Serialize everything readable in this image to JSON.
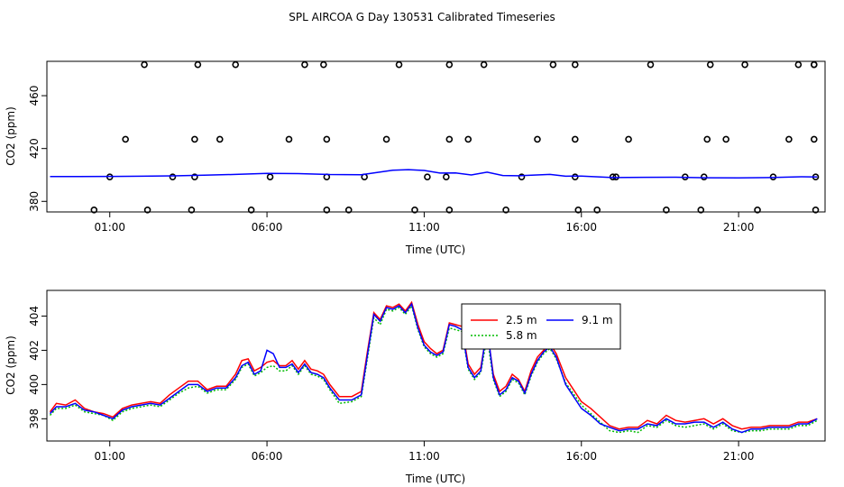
{
  "title": "SPL AIRCOA G  Day 130531  Calibrated Timeseries",
  "colors": {
    "s1": "#ff0000",
    "s2": "#00bb00",
    "s3": "#0000ff",
    "axis": "#000000",
    "bg": "#ffffff"
  },
  "chart_data": [
    {
      "type": "scatter",
      "name": "top",
      "title": "SPL AIRCOA G  Day 130531  Calibrated Timeseries",
      "xlabel": "Time (UTC)",
      "ylabel": "CO2 (ppm)",
      "xlim": [
        -1.0,
        23.75
      ],
      "ylim": [
        372,
        486
      ],
      "xticks": [
        1,
        6,
        11,
        16,
        21
      ],
      "xtick_labels": [
        "01:00",
        "06:00",
        "11:00",
        "16:00",
        "21:00"
      ],
      "yticks": [
        380,
        420,
        460
      ],
      "ytick_labels": [
        "380",
        "420",
        "460"
      ],
      "points": [
        [
          0.5,
          373.5
        ],
        [
          2.2,
          373.5
        ],
        [
          3.6,
          373.5
        ],
        [
          5.5,
          373.5
        ],
        [
          7.9,
          373.5
        ],
        [
          8.6,
          373.5
        ],
        [
          10.7,
          373.5
        ],
        [
          11.8,
          373.5
        ],
        [
          13.6,
          373.5
        ],
        [
          15.9,
          373.5
        ],
        [
          16.5,
          373.5
        ],
        [
          18.7,
          373.5
        ],
        [
          19.8,
          373.5
        ],
        [
          21.6,
          373.5
        ],
        [
          23.45,
          373.5
        ],
        [
          1.0,
          398.5
        ],
        [
          3.0,
          398.5
        ],
        [
          3.7,
          398.5
        ],
        [
          6.1,
          398.5
        ],
        [
          7.9,
          398.5
        ],
        [
          9.1,
          398.5
        ],
        [
          11.1,
          398.5
        ],
        [
          11.7,
          398.5
        ],
        [
          14.1,
          398.5
        ],
        [
          15.8,
          398.5
        ],
        [
          17.0,
          398.5
        ],
        [
          17.1,
          398.5
        ],
        [
          19.3,
          398.5
        ],
        [
          19.9,
          398.5
        ],
        [
          22.1,
          398.5
        ],
        [
          23.45,
          398.5
        ],
        [
          1.5,
          427
        ],
        [
          3.7,
          427
        ],
        [
          4.5,
          427
        ],
        [
          6.7,
          427
        ],
        [
          7.9,
          427
        ],
        [
          9.8,
          427
        ],
        [
          11.8,
          427
        ],
        [
          12.4,
          427
        ],
        [
          14.6,
          427
        ],
        [
          15.8,
          427
        ],
        [
          17.5,
          427
        ],
        [
          20.0,
          427
        ],
        [
          20.6,
          427
        ],
        [
          22.6,
          427
        ],
        [
          23.4,
          427
        ],
        [
          2.1,
          483.5
        ],
        [
          3.8,
          483.5
        ],
        [
          5.0,
          483.5
        ],
        [
          7.2,
          483.5
        ],
        [
          7.8,
          483.5
        ],
        [
          10.2,
          483.5
        ],
        [
          11.8,
          483.5
        ],
        [
          12.9,
          483.5
        ],
        [
          15.1,
          483.5
        ],
        [
          15.8,
          483.5
        ],
        [
          18.2,
          483.5
        ],
        [
          20.1,
          483.5
        ],
        [
          21.2,
          483.5
        ],
        [
          23.4,
          483.5
        ],
        [
          23.4,
          483.5
        ],
        [
          22.9,
          483.5
        ]
      ],
      "line": {
        "name": "fit",
        "x": [
          -0.9,
          0,
          1,
          2,
          3,
          4,
          5,
          6,
          7,
          8,
          9,
          9.5,
          10,
          10.5,
          11,
          11.5,
          12,
          12.5,
          13,
          13.5,
          14,
          15,
          15.5,
          16,
          17,
          18,
          19,
          20,
          21,
          22,
          23,
          23.5
        ],
        "y": [
          398.8,
          398.8,
          398.9,
          399.0,
          399.3,
          399.8,
          400.4,
          401.2,
          401.0,
          400.3,
          400.2,
          401.8,
          403.6,
          404.0,
          403.4,
          401.4,
          401.5,
          400.0,
          402.1,
          399.6,
          399.4,
          400.4,
          399.0,
          399.2,
          398.0,
          398.2,
          398.3,
          397.9,
          397.8,
          398.0,
          398.6,
          398.4
        ]
      }
    },
    {
      "type": "line",
      "name": "bottom",
      "xlabel": "Time (UTC)",
      "ylabel": "CO2 (ppm)",
      "xlim": [
        -1.0,
        23.75
      ],
      "ylim": [
        396.7,
        405.5
      ],
      "xticks": [
        1,
        6,
        11,
        16,
        21
      ],
      "xtick_labels": [
        "01:00",
        "06:00",
        "11:00",
        "16:00",
        "21:00"
      ],
      "yticks": [
        398,
        400,
        402,
        404
      ],
      "ytick_labels": [
        "398",
        "400",
        "402",
        "404"
      ],
      "legend": {
        "placement": "top-right",
        "entries": [
          "2.5 m",
          "5.8 m",
          "9.1 m"
        ]
      },
      "series": [
        {
          "name": "2.5 m",
          "x": [
            -0.9,
            -0.7,
            -0.4,
            -0.1,
            0.2,
            0.5,
            0.8,
            1.1,
            1.4,
            1.7,
            2.0,
            2.3,
            2.6,
            2.9,
            3.2,
            3.5,
            3.8,
            4.1,
            4.4,
            4.7,
            5.0,
            5.2,
            5.4,
            5.6,
            5.8,
            6.0,
            6.2,
            6.4,
            6.6,
            6.8,
            7.0,
            7.2,
            7.4,
            7.6,
            7.8,
            8.0,
            8.3,
            8.7,
            9.0,
            9.2,
            9.4,
            9.6,
            9.8,
            10.0,
            10.2,
            10.4,
            10.6,
            10.8,
            11.0,
            11.2,
            11.4,
            11.6,
            11.8,
            12.0,
            12.2,
            12.4,
            12.6,
            12.8,
            13.0,
            13.2,
            13.4,
            13.6,
            13.8,
            14.0,
            14.2,
            14.4,
            14.6,
            14.8,
            15.0,
            15.2,
            15.5,
            16.0,
            16.3,
            16.6,
            16.9,
            17.2,
            17.5,
            17.8,
            18.1,
            18.4,
            18.7,
            19.0,
            19.3,
            19.6,
            19.9,
            20.2,
            20.5,
            20.8,
            21.1,
            21.4,
            21.7,
            22.0,
            22.3,
            22.6,
            22.9,
            23.2,
            23.5
          ],
          "y": [
            398.4,
            398.9,
            398.8,
            399.1,
            398.6,
            398.4,
            398.3,
            398.1,
            398.6,
            398.8,
            398.9,
            399.0,
            398.9,
            399.4,
            399.8,
            400.2,
            400.2,
            399.7,
            399.9,
            399.9,
            400.6,
            401.4,
            401.5,
            400.8,
            401.0,
            401.3,
            401.4,
            401.1,
            401.1,
            401.4,
            400.9,
            401.4,
            400.9,
            400.8,
            400.6,
            400.0,
            399.3,
            399.3,
            399.6,
            402.0,
            404.2,
            403.8,
            404.6,
            404.5,
            404.7,
            404.3,
            404.8,
            403.5,
            402.5,
            402.1,
            401.8,
            402.0,
            403.6,
            403.5,
            403.4,
            401.2,
            400.6,
            401.0,
            403.2,
            400.6,
            399.6,
            399.9,
            400.6,
            400.3,
            399.6,
            400.8,
            401.6,
            402.0,
            402.4,
            401.8,
            400.4,
            399.0,
            398.6,
            398.1,
            397.6,
            397.4,
            397.5,
            397.5,
            397.9,
            397.7,
            398.2,
            397.9,
            397.8,
            397.9,
            398.0,
            397.7,
            398.0,
            397.6,
            397.4,
            397.5,
            397.5,
            397.6,
            397.6,
            397.6,
            397.8,
            397.8,
            398.0
          ]
        },
        {
          "name": "5.8 m",
          "x": [
            -0.9,
            -0.7,
            -0.4,
            -0.1,
            0.2,
            0.5,
            0.8,
            1.1,
            1.4,
            1.7,
            2.0,
            2.3,
            2.6,
            2.9,
            3.2,
            3.5,
            3.8,
            4.1,
            4.4,
            4.7,
            5.0,
            5.2,
            5.4,
            5.6,
            5.8,
            6.0,
            6.2,
            6.4,
            6.6,
            6.8,
            7.0,
            7.2,
            7.4,
            7.6,
            7.8,
            8.0,
            8.3,
            8.7,
            9.0,
            9.2,
            9.4,
            9.6,
            9.8,
            10.0,
            10.2,
            10.4,
            10.6,
            10.8,
            11.0,
            11.2,
            11.4,
            11.6,
            11.8,
            12.0,
            12.2,
            12.4,
            12.6,
            12.8,
            13.0,
            13.2,
            13.4,
            13.6,
            13.8,
            14.0,
            14.2,
            14.4,
            14.6,
            14.8,
            15.0,
            15.2,
            15.5,
            16.0,
            16.3,
            16.6,
            16.9,
            17.2,
            17.5,
            17.8,
            18.1,
            18.4,
            18.7,
            19.0,
            19.3,
            19.6,
            19.9,
            20.2,
            20.5,
            20.8,
            21.1,
            21.4,
            21.7,
            22.0,
            22.3,
            22.6,
            22.9,
            23.2,
            23.5
          ],
          "y": [
            398.2,
            398.6,
            398.6,
            398.8,
            398.4,
            398.3,
            398.2,
            397.9,
            398.4,
            398.6,
            398.7,
            398.8,
            398.7,
            399.1,
            399.5,
            399.8,
            399.9,
            399.5,
            399.7,
            399.7,
            400.3,
            401.0,
            401.2,
            400.5,
            400.7,
            401.0,
            401.1,
            400.8,
            400.8,
            401.1,
            400.6,
            401.1,
            400.6,
            400.5,
            400.3,
            399.7,
            398.9,
            399.0,
            399.3,
            401.6,
            403.9,
            403.5,
            404.4,
            404.3,
            404.5,
            404.1,
            404.6,
            403.2,
            402.2,
            401.8,
            401.6,
            401.8,
            403.3,
            403.2,
            403.1,
            400.9,
            400.3,
            400.7,
            402.8,
            400.3,
            399.3,
            399.6,
            400.3,
            400.1,
            399.4,
            400.5,
            401.3,
            401.8,
            402.1,
            401.5,
            400.1,
            398.8,
            398.3,
            397.8,
            397.3,
            397.2,
            397.3,
            397.2,
            397.6,
            397.5,
            397.9,
            397.6,
            397.5,
            397.6,
            397.7,
            397.4,
            397.7,
            397.3,
            397.2,
            397.3,
            397.3,
            397.4,
            397.4,
            397.4,
            397.6,
            397.6,
            397.9
          ]
        },
        {
          "name": "9.1 m",
          "x": [
            -0.9,
            -0.7,
            -0.4,
            -0.1,
            0.2,
            0.5,
            0.8,
            1.1,
            1.4,
            1.7,
            2.0,
            2.3,
            2.6,
            2.9,
            3.2,
            3.5,
            3.8,
            4.1,
            4.4,
            4.7,
            5.0,
            5.2,
            5.4,
            5.6,
            5.8,
            6.0,
            6.2,
            6.4,
            6.6,
            6.8,
            7.0,
            7.2,
            7.4,
            7.6,
            7.8,
            8.0,
            8.3,
            8.7,
            9.0,
            9.2,
            9.4,
            9.6,
            9.8,
            10.0,
            10.2,
            10.4,
            10.6,
            10.8,
            11.0,
            11.2,
            11.4,
            11.6,
            11.8,
            12.0,
            12.2,
            12.4,
            12.6,
            12.8,
            13.0,
            13.2,
            13.4,
            13.6,
            13.8,
            14.0,
            14.2,
            14.4,
            14.6,
            14.8,
            15.0,
            15.2,
            15.5,
            16.0,
            16.3,
            16.6,
            16.9,
            17.2,
            17.5,
            17.8,
            18.1,
            18.4,
            18.7,
            19.0,
            19.3,
            19.6,
            19.9,
            20.2,
            20.5,
            20.8,
            21.1,
            21.4,
            21.7,
            22.0,
            22.3,
            22.6,
            22.9,
            23.2,
            23.5
          ],
          "y": [
            398.3,
            398.7,
            398.7,
            398.9,
            398.5,
            398.4,
            398.2,
            398.0,
            398.5,
            398.7,
            398.8,
            398.9,
            398.8,
            399.2,
            399.6,
            400.0,
            400.0,
            399.6,
            399.8,
            399.8,
            400.4,
            401.1,
            401.3,
            400.6,
            400.8,
            402.0,
            401.8,
            401.0,
            401.0,
            401.2,
            400.7,
            401.2,
            400.7,
            400.6,
            400.4,
            399.8,
            399.1,
            399.1,
            399.4,
            401.8,
            404.1,
            403.7,
            404.5,
            404.4,
            404.6,
            404.2,
            404.7,
            403.3,
            402.3,
            401.9,
            401.7,
            401.9,
            403.5,
            403.4,
            403.2,
            401.0,
            400.4,
            400.8,
            403.4,
            400.4,
            399.4,
            399.7,
            400.4,
            400.2,
            399.5,
            400.6,
            401.4,
            401.9,
            402.2,
            401.6,
            400.0,
            398.6,
            398.2,
            397.7,
            397.5,
            397.3,
            397.4,
            397.4,
            397.7,
            397.6,
            398.0,
            397.7,
            397.7,
            397.8,
            397.8,
            397.5,
            397.8,
            397.4,
            397.2,
            397.4,
            397.4,
            397.5,
            397.5,
            397.5,
            397.7,
            397.7,
            398.0
          ]
        }
      ]
    }
  ]
}
